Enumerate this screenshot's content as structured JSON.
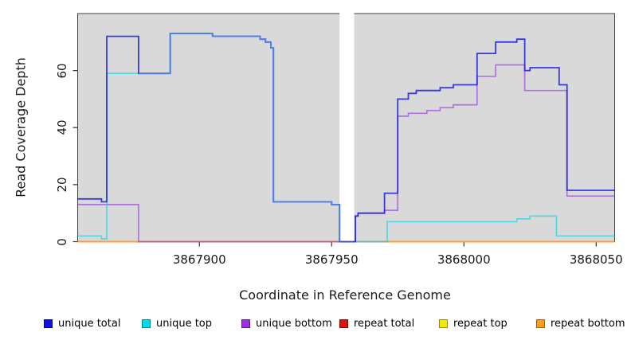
{
  "figure": {
    "x_axis_label": "Coordinate in Reference Genome",
    "y_axis_label": "Read Coverage Depth"
  },
  "legend": {
    "items": [
      {
        "label": "unique total",
        "color": "#1111dd"
      },
      {
        "label": "unique top",
        "color": "#00dde8"
      },
      {
        "label": "unique bottom",
        "color": "#9d2fe0"
      },
      {
        "label": "repeat total",
        "color": "#e01111"
      },
      {
        "label": "repeat top",
        "color": "#f5e800"
      },
      {
        "label": "repeat bottom",
        "color": "#ff9d1e"
      }
    ]
  },
  "chart_data": {
    "type": "line",
    "subtype": "step-coverage",
    "title": "",
    "xlabel": "Coordinate in Reference Genome",
    "ylabel": "Read Coverage Depth",
    "xlim": [
      3867854,
      3868057
    ],
    "ylim": [
      0,
      80
    ],
    "x_ticks": [
      3867900,
      3867950,
      3868000,
      3868050
    ],
    "y_ticks": [
      0,
      20,
      40,
      60
    ],
    "grid": false,
    "legend_position": "bottom",
    "panel_background": "#d9d9d9",
    "gap_region": {
      "from": 3867953,
      "to": 3867958.5
    },
    "series": [
      {
        "name": "unique total",
        "color": "rgba(28,28,222,0.85)",
        "overlap_color": "#4d80ef",
        "points": [
          [
            3867854,
            15
          ],
          [
            3867863,
            14
          ],
          [
            3867865,
            72
          ],
          [
            3867877,
            59
          ],
          [
            3867889,
            73
          ],
          [
            3867905,
            72
          ],
          [
            3867923,
            71
          ],
          [
            3867925,
            70
          ],
          [
            3867927,
            68
          ],
          [
            3867928,
            14
          ],
          [
            3867950,
            13
          ],
          [
            3867953,
            0
          ],
          [
            3867959,
            9
          ],
          [
            3867960,
            10
          ],
          [
            3867970,
            17
          ],
          [
            3867975,
            50
          ],
          [
            3867979,
            52
          ],
          [
            3867982,
            53
          ],
          [
            3867991,
            54
          ],
          [
            3867996,
            55
          ],
          [
            3868005,
            66
          ],
          [
            3868012,
            70
          ],
          [
            3868020,
            71
          ],
          [
            3868023,
            60
          ],
          [
            3868025,
            61
          ],
          [
            3868036,
            55
          ],
          [
            3868039,
            18
          ]
        ]
      },
      {
        "name": "unique top",
        "color": "rgba(0,214,232,0.62)",
        "points": [
          [
            3867854,
            2
          ],
          [
            3867863,
            1
          ],
          [
            3867865,
            59
          ],
          [
            3867889,
            73
          ],
          [
            3867905,
            72
          ],
          [
            3867923,
            71
          ],
          [
            3867925,
            70
          ],
          [
            3867927,
            68
          ],
          [
            3867928,
            14
          ],
          [
            3867950,
            13
          ],
          [
            3867953,
            0
          ],
          [
            3867971,
            7
          ],
          [
            3868020,
            8
          ],
          [
            3868025,
            9
          ],
          [
            3868035,
            2
          ]
        ]
      },
      {
        "name": "unique bottom",
        "color": "rgba(152,44,228,0.6)",
        "points": [
          [
            3867854,
            13
          ],
          [
            3867877,
            0
          ],
          [
            3867959,
            9
          ],
          [
            3867960,
            10
          ],
          [
            3867970,
            11
          ],
          [
            3867975,
            44
          ],
          [
            3867979,
            45
          ],
          [
            3867986,
            46
          ],
          [
            3867991,
            47
          ],
          [
            3867996,
            48
          ],
          [
            3868005,
            58
          ],
          [
            3868012,
            62
          ],
          [
            3868023,
            53
          ],
          [
            3868039,
            16
          ]
        ]
      },
      {
        "name": "repeat total",
        "color": "#de2525",
        "points": [
          [
            3867854,
            0
          ]
        ]
      },
      {
        "name": "repeat top",
        "color": "#f3e93a",
        "points": [
          [
            3867854,
            0
          ]
        ]
      },
      {
        "name": "repeat bottom",
        "color": "#ff9d2e",
        "points": [
          [
            3867854,
            0
          ]
        ]
      }
    ]
  }
}
